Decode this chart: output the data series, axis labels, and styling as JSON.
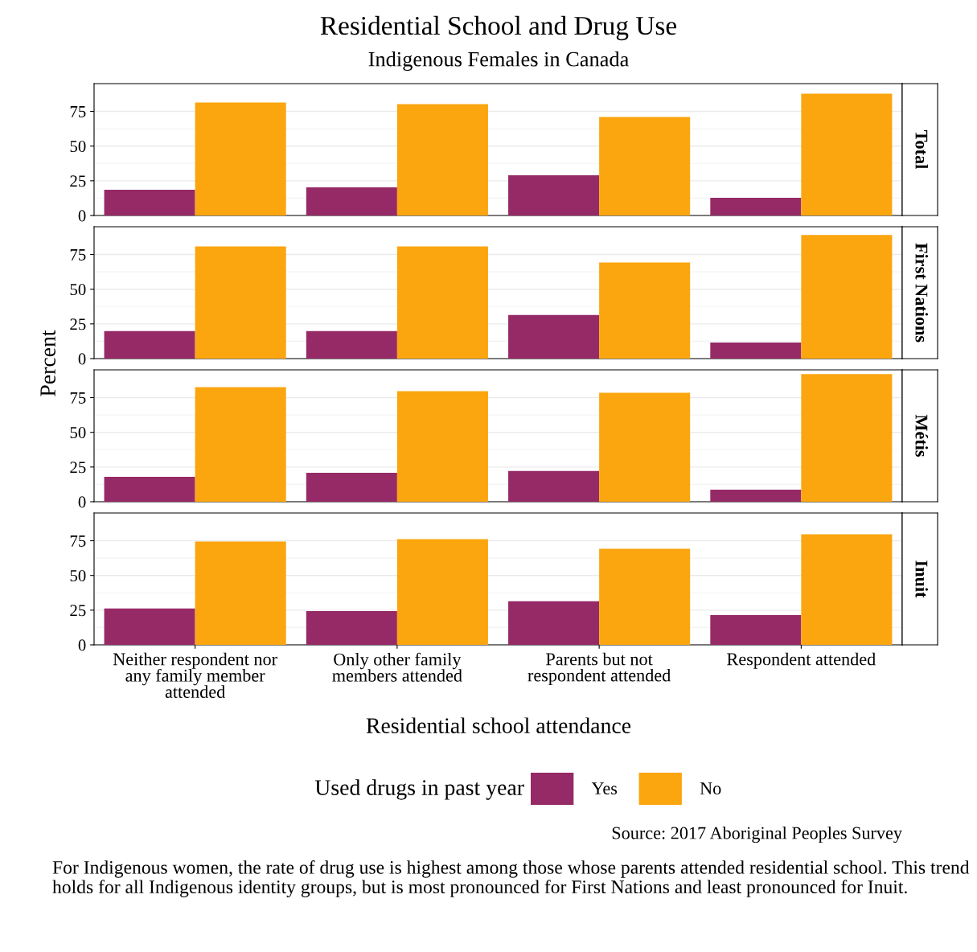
{
  "chart_data": [
    {
      "type": "bar",
      "title": "Residential School and Drug Use",
      "subtitle": "Indigenous Females in Canada",
      "y2label": "Total",
      "categories": [
        null,
        null,
        null,
        null
      ],
      "series": [
        {
          "color": "#962a67",
          "values": [
            18.6,
            20.3,
            29,
            12.8
          ]
        },
        {
          "color": "#fba50f",
          "values": [
            81.4,
            80.2,
            70.9,
            87.8
          ]
        }
      ],
      "ylim": [
        0,
        95
      ],
      "yticks": [
        0,
        25,
        50,
        75
      ],
      "grid": true,
      "tick_labels": "y"
    },
    {
      "type": "bar",
      "y2label": "First Nations",
      "ylabel": "Percent",
      "categories": [
        null,
        null,
        null,
        null
      ],
      "series": [
        {
          "color": "#962a67",
          "values": [
            19.8,
            19.8,
            31.4,
            11.6
          ]
        },
        {
          "color": "#fba50f",
          "values": [
            80.8,
            80.8,
            69.2,
            89
          ]
        }
      ],
      "ylim": [
        0,
        95
      ],
      "yticks": [
        0,
        25,
        50,
        75
      ],
      "grid": true,
      "tick_labels": "y"
    },
    {
      "type": "bar",
      "y2label": "Métis",
      "categories": [
        null,
        null,
        null,
        null
      ],
      "series": [
        {
          "color": "#962a67",
          "values": [
            18,
            20.9,
            22.1,
            8.7
          ]
        },
        {
          "color": "#fba50f",
          "values": [
            82.6,
            79.7,
            78.5,
            91.9
          ]
        }
      ],
      "ylim": [
        0,
        95
      ],
      "yticks": [
        0,
        25,
        50,
        75
      ],
      "grid": true,
      "tick_labels": "y"
    },
    {
      "type": "bar",
      "y2label": "Inuit",
      "xlabel": "Residential school attendance",
      "legend_title": "Used drugs in past year",
      "legend": "bottom",
      "categories": [
        "Neither respondent nor any family member attended",
        "Only other family members attended",
        "Parents but not respondent attended",
        "Respondent attended"
      ],
      "series": [
        {
          "name": "Yes",
          "color": "#962a67",
          "values": [
            26.2,
            24.4,
            31.4,
            21.5
          ]
        },
        {
          "name": "No",
          "color": "#fba50f",
          "values": [
            74.4,
            76.2,
            69.2,
            79.7
          ]
        }
      ],
      "ylim": [
        0,
        95
      ],
      "yticks": [
        0,
        25,
        50,
        75
      ],
      "grid": true,
      "annotations": [
        "Source: 2017 Aboriginal Peoples Survey",
        "For Indigenous women, the rate of drug use is highest among those whose parents attended residential school. This trend holds for all Indigenous identity groups, but is most pronounced for First Nations and least pronounced for Inuit."
      ]
    }
  ]
}
